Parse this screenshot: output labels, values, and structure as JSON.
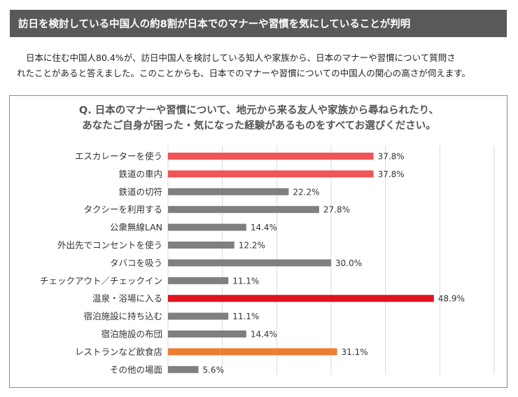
{
  "header": {
    "title": "訪日を検討している中国人の約8割が日本でのマナーや習慣を気にしていることが判明"
  },
  "intro": {
    "line1": "日本に住む中国人80.4%が、訪日中国人を検討している知人や家族から、日本のマナーや習慣について質問さ",
    "line2": "れたことがあると答えました。このことからも、日本でのマナーや習慣についての中国人の関心の高さが伺えます。"
  },
  "chart_data": {
    "type": "bar",
    "orientation": "horizontal",
    "title_line1": "Q. 日本のマナーや習慣について、地元から来る友人や家族から尋ねられたり、",
    "title_line2": "あなたご自身が困った・気になった経験があるものをすべてお選びください。",
    "categories": [
      "エスカレーターを使う",
      "鉄道の車内",
      "鉄道の切符",
      "タクシーを利用する",
      "公衆無線LAN",
      "外出先でコンセントを使う",
      "タバコを吸う",
      "チェックアウト／チェックイン",
      "温泉・浴場に入る",
      "宿泊施設に持ち込む",
      "宿泊施設の布団",
      "レストランなど飲食店",
      "その他の場面"
    ],
    "values": [
      37.8,
      37.8,
      22.2,
      27.8,
      14.4,
      12.2,
      30.0,
      11.1,
      48.9,
      11.1,
      14.4,
      31.1,
      5.6
    ],
    "value_labels": [
      "37.8%",
      "37.8%",
      "22.2%",
      "27.8%",
      "14.4%",
      "12.2%",
      "30.0%",
      "11.1%",
      "48.9%",
      "11.1%",
      "14.4%",
      "31.1%",
      "5.6%"
    ],
    "bar_colors": [
      "#f05456",
      "#f05456",
      "#7f7f7f",
      "#7f7f7f",
      "#7f7f7f",
      "#7f7f7f",
      "#7f7f7f",
      "#7f7f7f",
      "#e0141e",
      "#7f7f7f",
      "#7f7f7f",
      "#ee7d33",
      "#7f7f7f"
    ],
    "xlim": [
      0,
      60
    ],
    "grid": true,
    "grid_color": "#d9d9d9"
  }
}
